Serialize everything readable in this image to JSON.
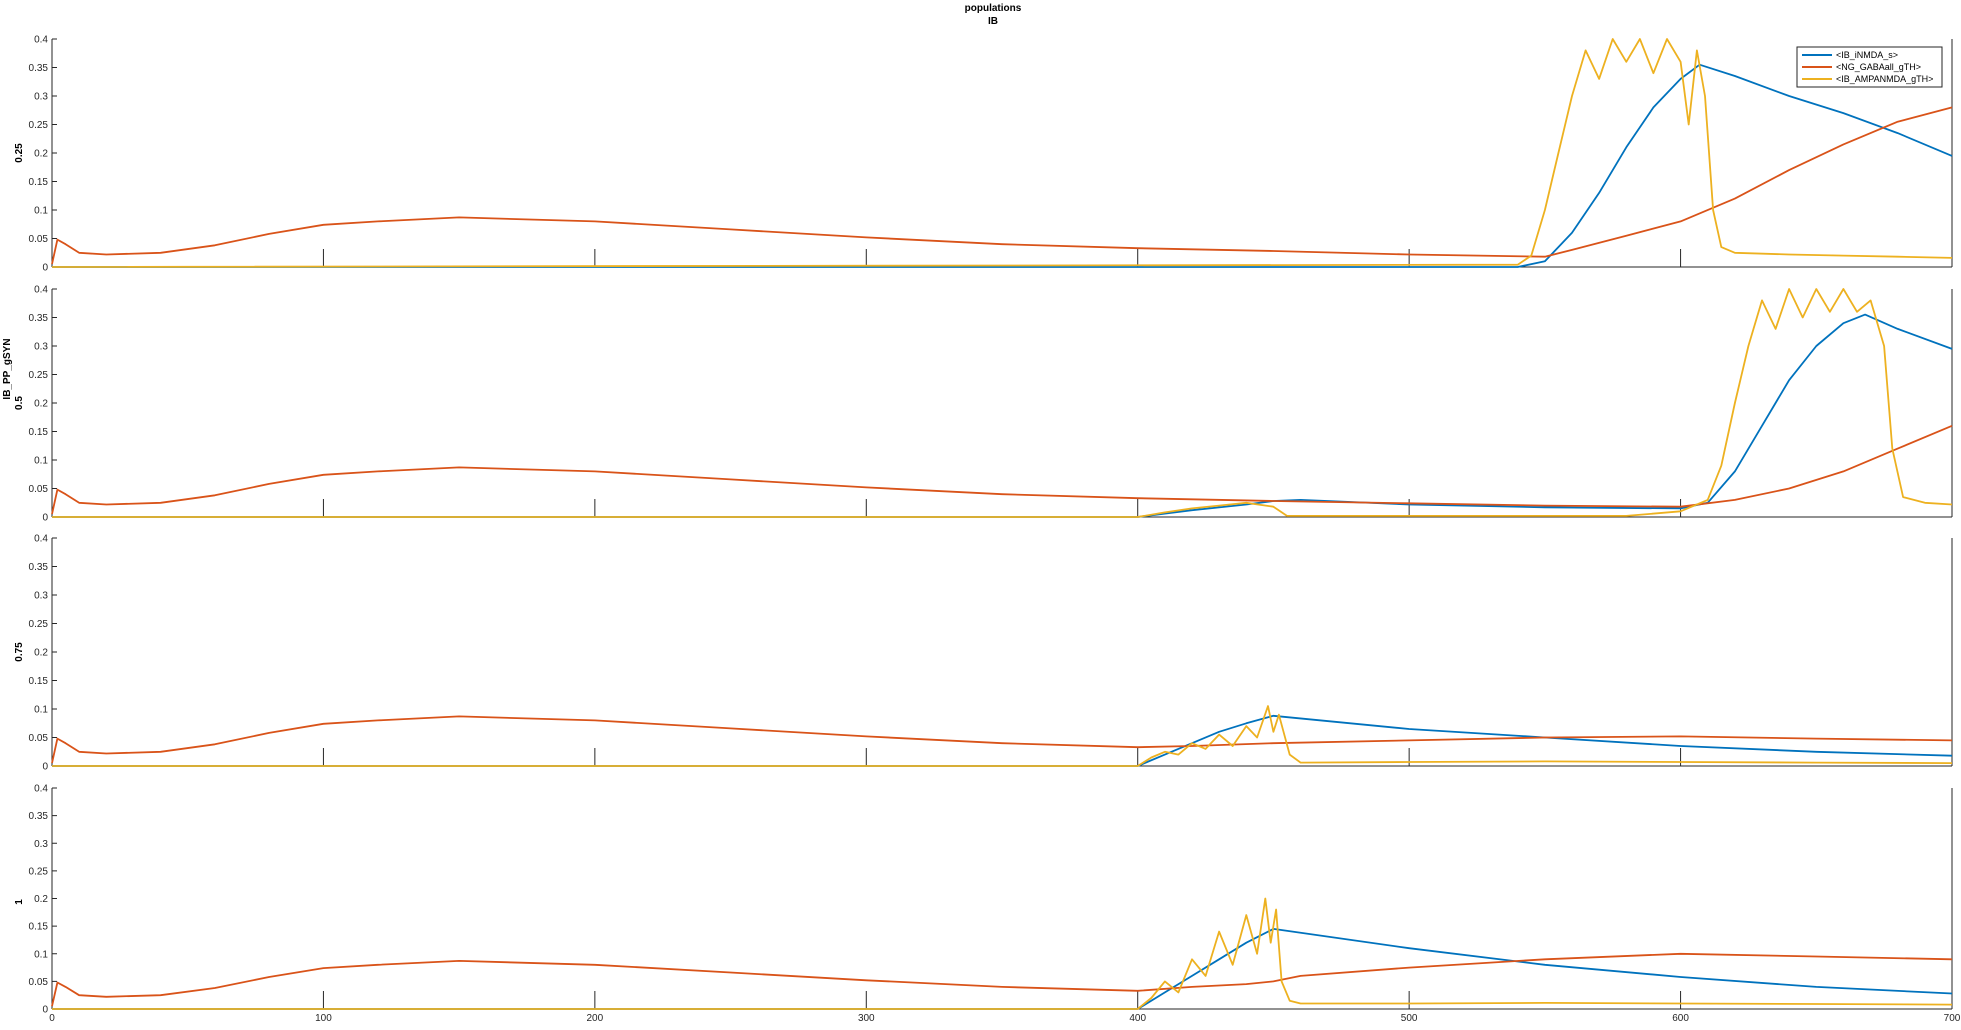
{
  "figure": {
    "title_lines": [
      "populations",
      "IB"
    ],
    "shared_ylabel": "IB_PP_gSYN"
  },
  "colors": {
    "IB_iNMDA_s": "#0072BD",
    "NG_GABAall_gTH": "#D95319",
    "IB_AMPANMDA_gTH": "#EDB120",
    "axis": "#262626"
  },
  "chart_data": [
    {
      "type": "line",
      "panel_label": "0.25",
      "xlim": [
        0,
        700
      ],
      "ylim": [
        0,
        0.4
      ],
      "xticks": [
        0,
        100,
        200,
        300,
        400,
        500,
        600,
        700
      ],
      "yticks": [
        0,
        0.05,
        0.1,
        0.15,
        0.2,
        0.25,
        0.3,
        0.35,
        0.4
      ],
      "show_x_tick_labels": false,
      "legend": {
        "position": "top-right",
        "entries": [
          "<IB_iNMDA_s>",
          "<NG_GABAall_gTH>",
          "<IB_AMPANMDA_gTH>"
        ]
      },
      "series": [
        {
          "name": "<IB_iNMDA_s>",
          "x": [
            0,
            540,
            550,
            560,
            570,
            580,
            590,
            600,
            607,
            620,
            640,
            660,
            680,
            700
          ],
          "y": [
            0,
            0,
            0.01,
            0.06,
            0.13,
            0.21,
            0.28,
            0.33,
            0.355,
            0.335,
            0.3,
            0.27,
            0.235,
            0.195
          ]
        },
        {
          "name": "<NG_GABAall_gTH>",
          "x": [
            0,
            2,
            5,
            10,
            20,
            40,
            60,
            80,
            100,
            120,
            150,
            200,
            250,
            300,
            350,
            400,
            450,
            500,
            550,
            560,
            580,
            600,
            620,
            640,
            660,
            680,
            700
          ],
          "y": [
            0.005,
            0.048,
            0.04,
            0.025,
            0.022,
            0.025,
            0.038,
            0.058,
            0.074,
            0.08,
            0.087,
            0.08,
            0.066,
            0.052,
            0.04,
            0.033,
            0.028,
            0.022,
            0.018,
            0.03,
            0.055,
            0.08,
            0.12,
            0.17,
            0.215,
            0.255,
            0.28
          ]
        },
        {
          "name": "<IB_AMPANMDA_gTH>",
          "x": [
            0,
            540,
            545,
            550,
            555,
            560,
            565,
            570,
            575,
            580,
            585,
            590,
            595,
            600,
            603,
            606,
            609,
            612,
            615,
            620,
            640,
            660,
            680,
            700
          ],
          "y": [
            0,
            0.004,
            0.02,
            0.1,
            0.2,
            0.3,
            0.38,
            0.33,
            0.4,
            0.36,
            0.4,
            0.34,
            0.4,
            0.36,
            0.25,
            0.38,
            0.3,
            0.1,
            0.035,
            0.025,
            0.022,
            0.02,
            0.018,
            0.016
          ]
        }
      ]
    },
    {
      "type": "line",
      "panel_label": "0.5",
      "xlim": [
        0,
        700
      ],
      "ylim": [
        0,
        0.4
      ],
      "xticks": [
        0,
        100,
        200,
        300,
        400,
        500,
        600,
        700
      ],
      "yticks": [
        0,
        0.05,
        0.1,
        0.15,
        0.2,
        0.25,
        0.3,
        0.35,
        0.4
      ],
      "show_x_tick_labels": false,
      "series": [
        {
          "name": "<IB_iNMDA_s>",
          "x": [
            0,
            400,
            420,
            440,
            450,
            460,
            500,
            550,
            600,
            610,
            620,
            630,
            640,
            650,
            660,
            668,
            680,
            700
          ],
          "y": [
            0,
            0,
            0.012,
            0.022,
            0.028,
            0.03,
            0.022,
            0.017,
            0.015,
            0.025,
            0.08,
            0.16,
            0.24,
            0.3,
            0.34,
            0.355,
            0.33,
            0.295
          ]
        },
        {
          "name": "<NG_GABAall_gTH>",
          "x": [
            0,
            2,
            5,
            10,
            20,
            40,
            60,
            80,
            100,
            120,
            150,
            200,
            250,
            300,
            350,
            400,
            450,
            500,
            550,
            600,
            620,
            640,
            660,
            680,
            700
          ],
          "y": [
            0.005,
            0.048,
            0.04,
            0.025,
            0.022,
            0.025,
            0.038,
            0.058,
            0.074,
            0.08,
            0.087,
            0.08,
            0.066,
            0.052,
            0.04,
            0.033,
            0.028,
            0.024,
            0.02,
            0.018,
            0.03,
            0.05,
            0.08,
            0.12,
            0.16
          ]
        },
        {
          "name": "<IB_AMPANMDA_gTH>",
          "x": [
            0,
            400,
            410,
            420,
            430,
            440,
            450,
            455,
            580,
            600,
            610,
            615,
            620,
            625,
            630,
            635,
            640,
            645,
            650,
            655,
            660,
            665,
            670,
            675,
            678,
            682,
            690,
            700
          ],
          "y": [
            0,
            0,
            0.008,
            0.015,
            0.02,
            0.025,
            0.018,
            0.002,
            0.002,
            0.01,
            0.03,
            0.09,
            0.2,
            0.3,
            0.38,
            0.33,
            0.4,
            0.35,
            0.4,
            0.36,
            0.4,
            0.36,
            0.38,
            0.3,
            0.12,
            0.035,
            0.025,
            0.022
          ]
        }
      ]
    },
    {
      "type": "line",
      "panel_label": "0.75",
      "xlim": [
        0,
        700
      ],
      "ylim": [
        0,
        0.4
      ],
      "xticks": [
        0,
        100,
        200,
        300,
        400,
        500,
        600,
        700
      ],
      "yticks": [
        0,
        0.05,
        0.1,
        0.15,
        0.2,
        0.25,
        0.3,
        0.35,
        0.4
      ],
      "show_x_tick_labels": false,
      "series": [
        {
          "name": "<IB_iNMDA_s>",
          "x": [
            0,
            400,
            410,
            420,
            430,
            440,
            450,
            500,
            550,
            600,
            650,
            700
          ],
          "y": [
            0,
            0,
            0.02,
            0.04,
            0.06,
            0.075,
            0.088,
            0.065,
            0.05,
            0.035,
            0.025,
            0.018
          ]
        },
        {
          "name": "<NG_GABAall_gTH>",
          "x": [
            0,
            2,
            5,
            10,
            20,
            40,
            60,
            80,
            100,
            120,
            150,
            200,
            250,
            300,
            350,
            400,
            420,
            450,
            500,
            550,
            600,
            650,
            700
          ],
          "y": [
            0.005,
            0.048,
            0.04,
            0.025,
            0.022,
            0.025,
            0.038,
            0.058,
            0.074,
            0.08,
            0.087,
            0.08,
            0.066,
            0.052,
            0.04,
            0.033,
            0.035,
            0.04,
            0.045,
            0.05,
            0.052,
            0.048,
            0.045
          ]
        },
        {
          "name": "<IB_AMPANMDA_gTH>",
          "x": [
            0,
            400,
            405,
            410,
            415,
            420,
            425,
            430,
            435,
            440,
            444,
            448,
            450,
            452,
            456,
            460,
            500,
            550,
            600,
            650,
            700
          ],
          "y": [
            0,
            0,
            0.015,
            0.025,
            0.02,
            0.04,
            0.03,
            0.055,
            0.035,
            0.07,
            0.05,
            0.105,
            0.06,
            0.09,
            0.02,
            0.006,
            0.007,
            0.008,
            0.007,
            0.006,
            0.005
          ]
        }
      ]
    },
    {
      "type": "line",
      "panel_label": "1",
      "xlim": [
        0,
        700
      ],
      "ylim": [
        0,
        0.4
      ],
      "xticks": [
        0,
        100,
        200,
        300,
        400,
        500,
        600,
        700
      ],
      "yticks": [
        0,
        0.05,
        0.1,
        0.15,
        0.2,
        0.25,
        0.3,
        0.35,
        0.4
      ],
      "show_x_tick_labels": true,
      "series": [
        {
          "name": "<IB_iNMDA_s>",
          "x": [
            0,
            400,
            410,
            420,
            430,
            440,
            450,
            500,
            550,
            600,
            650,
            700
          ],
          "y": [
            0,
            0,
            0.03,
            0.06,
            0.09,
            0.12,
            0.145,
            0.11,
            0.08,
            0.058,
            0.04,
            0.028
          ]
        },
        {
          "name": "<NG_GABAall_gTH>",
          "x": [
            0,
            2,
            5,
            10,
            20,
            40,
            60,
            80,
            100,
            120,
            150,
            200,
            250,
            300,
            350,
            400,
            420,
            440,
            450,
            460,
            500,
            550,
            600,
            650,
            700
          ],
          "y": [
            0.005,
            0.048,
            0.04,
            0.025,
            0.022,
            0.025,
            0.038,
            0.058,
            0.074,
            0.08,
            0.087,
            0.08,
            0.066,
            0.052,
            0.04,
            0.033,
            0.04,
            0.045,
            0.05,
            0.06,
            0.075,
            0.09,
            0.1,
            0.095,
            0.09
          ]
        },
        {
          "name": "<IB_AMPANMDA_gTH>",
          "x": [
            0,
            400,
            405,
            410,
            415,
            420,
            425,
            430,
            435,
            440,
            444,
            447,
            449,
            451,
            453,
            456,
            460,
            500,
            550,
            600,
            650,
            700
          ],
          "y": [
            0,
            0,
            0.02,
            0.05,
            0.03,
            0.09,
            0.06,
            0.14,
            0.08,
            0.17,
            0.1,
            0.2,
            0.12,
            0.18,
            0.05,
            0.015,
            0.01,
            0.01,
            0.011,
            0.01,
            0.009,
            0.008
          ]
        }
      ]
    }
  ]
}
